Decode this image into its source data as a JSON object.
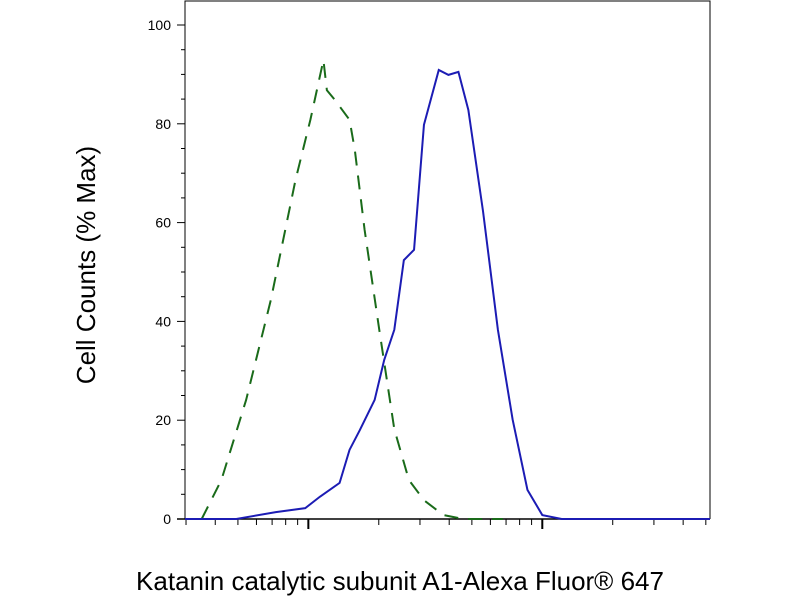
{
  "chart_data": {
    "type": "line",
    "x_label": "Katanin catalytic subunit A1-Alexa Fluor® 647",
    "y_label": "Cell Counts (% Max)",
    "x_scale": "log",
    "xlim": [
      2.97,
      521
    ],
    "ylim": [
      0,
      100
    ],
    "yticks": [
      0,
      20,
      40,
      60,
      80,
      100
    ],
    "series": [
      {
        "color": "#1a6b1a",
        "dash": true,
        "x": [
          3.5,
          4.25,
          5.42,
          6.91,
          8.81,
          10.2,
          11.6,
          12.0,
          13.0,
          15.0,
          15.8,
          17.4,
          20.1,
          23.3,
          26.9,
          31.2,
          37.8,
          45.9,
          67.8
        ],
        "values": [
          0,
          7.9,
          24.1,
          44.3,
          68.6,
          80.8,
          92.9,
          86.8,
          84.8,
          80.8,
          74.7,
          58.5,
          38.3,
          18.2,
          7.9,
          3.8,
          0.8,
          0,
          0
        ]
      },
      {
        "color": "#1c1cb4",
        "dash": false,
        "x": [
          2.97,
          4.92,
          7.26,
          9.7,
          11.2,
          13.6,
          15.0,
          16.6,
          19.2,
          21.1,
          23.3,
          25.6,
          28.3,
          31.2,
          36.1,
          39.7,
          43.8,
          48.3,
          55.8,
          64.6,
          74.7,
          86.4,
          100,
          121,
          521
        ],
        "values": [
          0,
          0,
          1.4,
          2.2,
          4.5,
          7.3,
          14.0,
          18.0,
          24.1,
          32.2,
          38.3,
          52.4,
          54.5,
          79.8,
          90.9,
          89.9,
          90.5,
          82.8,
          62.3,
          38.3,
          20.1,
          5.9,
          0.8,
          0,
          0
        ]
      }
    ]
  }
}
